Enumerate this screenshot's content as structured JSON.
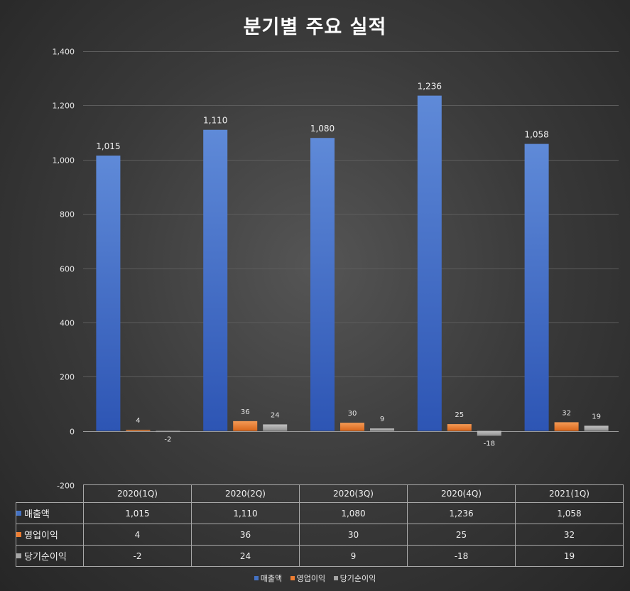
{
  "chart_data": {
    "type": "bar",
    "title": "분기별 주요 실적",
    "categories": [
      "2020(1Q)",
      "2020(2Q)",
      "2020(3Q)",
      "2020(4Q)",
      "2021(1Q)"
    ],
    "series": [
      {
        "name": "매출액",
        "values": [
          1015,
          1110,
          1080,
          1236,
          1058
        ],
        "labels": [
          "1,015",
          "1,110",
          "1,080",
          "1,236",
          "1,058"
        ],
        "color": "#4472c4"
      },
      {
        "name": "영업이익",
        "values": [
          4,
          36,
          30,
          25,
          32
        ],
        "labels": [
          "4",
          "36",
          "30",
          "25",
          "32"
        ],
        "color": "#ed7d31"
      },
      {
        "name": "당기순이익",
        "values": [
          -2,
          24,
          9,
          -18,
          19
        ],
        "labels": [
          "-2",
          "24",
          "9",
          "-18",
          "19"
        ],
        "color": "#a5a5a5"
      }
    ],
    "yticks": [
      -200,
      0,
      200,
      400,
      600,
      800,
      1000,
      1200,
      1400
    ],
    "ytick_labels": [
      "-200",
      "0",
      "200",
      "400",
      "600",
      "800",
      "1,000",
      "1,200",
      "1,400"
    ],
    "ylim": [
      -200,
      1400
    ],
    "grid": true,
    "legend": "bottom",
    "data_table": true
  }
}
